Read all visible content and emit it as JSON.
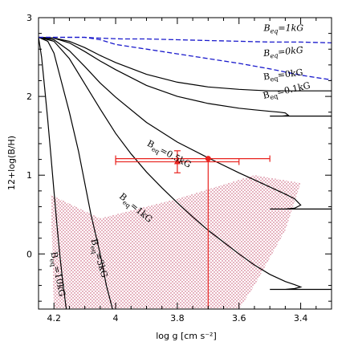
{
  "chart_data": {
    "type": "line",
    "xlabel": "log g [cm s⁻²]",
    "ylabel": "12+log(B/H)",
    "xlim": [
      4.25,
      3.3
    ],
    "ylim": [
      -0.7,
      3.0
    ],
    "x_ticks": [
      "4.2",
      "4",
      "3.8",
      "3.6",
      "3.4"
    ],
    "x_tick_values": [
      4.2,
      4.0,
      3.8,
      3.6,
      3.4
    ],
    "y_ticks": [
      "3",
      "2",
      "1",
      "0"
    ],
    "y_tick_values": [
      3,
      2,
      1,
      0
    ],
    "grid": false,
    "legend": "none",
    "colors": {
      "model": "#000000",
      "dashed": "#1a1acc",
      "data": "#e8221e",
      "shade": "#c04060"
    },
    "series": [
      {
        "name": "B_eq=0kG",
        "style": "solid",
        "color": "#000000",
        "label_text": "B",
        "label_sub": "eq",
        "label_rest": "=0kG",
        "x": [
          4.25,
          4.2,
          4.15,
          4.1,
          4.05,
          4.0,
          3.9,
          3.8,
          3.7,
          3.6,
          3.55,
          3.5,
          3.45,
          3.4,
          3.3
        ],
        "y": [
          2.75,
          2.74,
          2.7,
          2.62,
          2.52,
          2.43,
          2.28,
          2.18,
          2.12,
          2.09,
          2.08,
          2.07,
          2.07,
          2.07,
          2.07
        ]
      },
      {
        "name": "B_eq=0.1kG",
        "style": "solid",
        "color": "#000000",
        "label_text": "B",
        "label_sub": "eq",
        "label_rest": "=0.1kG",
        "x": [
          4.25,
          4.2,
          4.15,
          4.1,
          4.05,
          4.0,
          3.9,
          3.8,
          3.7,
          3.6,
          3.55,
          3.5,
          3.47,
          3.45,
          3.44,
          3.46,
          3.5,
          3.3
        ],
        "y": [
          2.75,
          2.74,
          2.68,
          2.57,
          2.45,
          2.34,
          2.14,
          2.0,
          1.91,
          1.85,
          1.83,
          1.81,
          1.8,
          1.79,
          1.76,
          1.75,
          1.75,
          1.75
        ]
      },
      {
        "name": "B_eq=0.5kG",
        "style": "solid",
        "color": "#000000",
        "label_text": "B",
        "label_sub": "eq",
        "label_rest": "=0.5kG",
        "x": [
          4.25,
          4.2,
          4.15,
          4.1,
          4.05,
          4.0,
          3.9,
          3.8,
          3.7,
          3.6,
          3.55,
          3.5,
          3.45,
          3.42,
          3.4,
          3.42,
          3.45,
          3.5,
          3.3
        ],
        "y": [
          2.75,
          2.72,
          2.58,
          2.38,
          2.17,
          1.99,
          1.67,
          1.42,
          1.22,
          1.03,
          0.94,
          0.85,
          0.76,
          0.7,
          0.62,
          0.58,
          0.57,
          0.57,
          0.57
        ]
      },
      {
        "name": "B_eq=1kG",
        "style": "solid",
        "color": "#000000",
        "label_text": "B",
        "label_sub": "eq",
        "label_rest": "=1kG",
        "x": [
          4.25,
          4.2,
          4.15,
          4.1,
          4.05,
          4.0,
          3.95,
          3.9,
          3.85,
          3.8,
          3.75,
          3.7,
          3.65,
          3.6,
          3.55,
          3.5,
          3.45,
          3.42,
          3.4,
          3.42,
          3.45,
          3.5,
          3.3
        ],
        "y": [
          2.75,
          2.7,
          2.48,
          2.16,
          1.84,
          1.53,
          1.27,
          1.04,
          0.84,
          0.65,
          0.47,
          0.3,
          0.15,
          0.0,
          -0.14,
          -0.26,
          -0.35,
          -0.39,
          -0.42,
          -0.44,
          -0.45,
          -0.45,
          -0.45
        ]
      },
      {
        "name": "B_eq=3kG",
        "style": "solid",
        "color": "#000000",
        "label_text": "B",
        "label_sub": "eq",
        "label_rest": "=3kG",
        "x": [
          4.25,
          4.22,
          4.2,
          4.18,
          4.15,
          4.12,
          4.1,
          4.08,
          4.05,
          4.03,
          4.01
        ],
        "y": [
          2.75,
          2.7,
          2.55,
          2.25,
          1.8,
          1.3,
          0.9,
          0.5,
          0.0,
          -0.4,
          -0.7
        ]
      },
      {
        "name": "B_eq=10kG",
        "style": "solid",
        "color": "#000000",
        "label_text": "B",
        "label_sub": "eq",
        "label_rest": "=10kG",
        "x": [
          4.25,
          4.24,
          4.23,
          4.22,
          4.21,
          4.2,
          4.19,
          4.18,
          4.17,
          4.16
        ],
        "y": [
          2.75,
          2.5,
          2.1,
          1.7,
          1.25,
          0.8,
          0.35,
          -0.05,
          -0.4,
          -0.7
        ]
      },
      {
        "name": "B_eq=1kG (dashed)",
        "style": "dashed",
        "color": "#1a1acc",
        "label_text": "B",
        "label_sub": "eq",
        "label_rest": "=1kG",
        "x": [
          4.25,
          4.15,
          4.1,
          4.05,
          3.98,
          3.9,
          3.8,
          3.7,
          3.6,
          3.5,
          3.4,
          3.3
        ],
        "y": [
          2.75,
          2.75,
          2.75,
          2.74,
          2.73,
          2.73,
          2.72,
          2.71,
          2.7,
          2.69,
          2.69,
          2.68
        ]
      },
      {
        "name": "B_eq=0kG (dashed)",
        "style": "dashed",
        "color": "#1a1acc",
        "label_text": "B",
        "label_sub": "eq",
        "label_rest": "=0kG",
        "x": [
          4.25,
          4.15,
          4.1,
          4.05,
          4.0,
          3.9,
          3.8,
          3.7,
          3.6,
          3.5,
          3.45,
          3.4,
          3.35,
          3.3
        ],
        "y": [
          2.75,
          2.75,
          2.75,
          2.72,
          2.66,
          2.6,
          2.54,
          2.48,
          2.42,
          2.35,
          2.31,
          2.27,
          2.24,
          2.21
        ]
      }
    ],
    "points": [
      {
        "marker": "triangle",
        "x": 3.8,
        "y": 1.17,
        "xerr": [
          0.2,
          0.2
        ],
        "yerr": [
          0.14,
          0.14
        ]
      },
      {
        "marker": "circle",
        "x": 3.7,
        "y": 1.21,
        "xerr": [
          0.3,
          0.2
        ],
        "yerr": [
          1.91,
          0.0
        ]
      }
    ],
    "shaded_region": {
      "pattern": "dotted",
      "x": [
        4.21,
        4.05,
        3.95,
        3.8,
        3.55,
        3.4,
        3.45,
        3.5,
        3.55,
        3.6,
        3.7,
        3.8,
        3.9,
        4.0,
        4.1,
        4.18,
        4.2
      ],
      "y": [
        0.75,
        0.45,
        0.55,
        0.7,
        1.0,
        0.9,
        0.3,
        -0.05,
        -0.4,
        -0.7,
        -0.7,
        -0.7,
        -0.7,
        -0.7,
        -0.7,
        -0.7,
        -0.7
      ]
    }
  }
}
